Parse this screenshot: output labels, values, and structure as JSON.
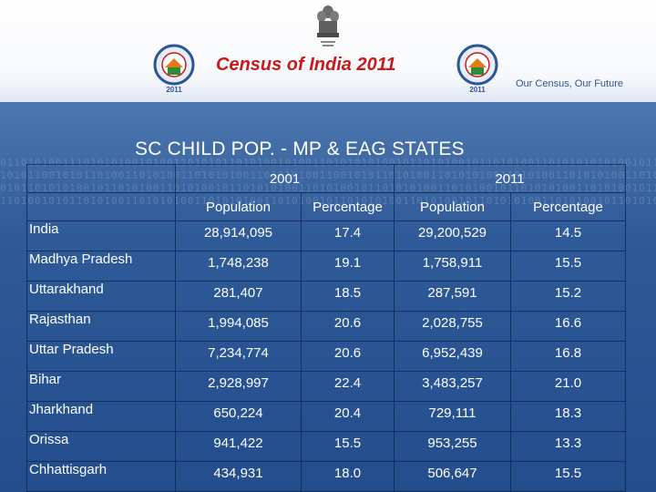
{
  "header": {
    "title": "Census of India 2011",
    "tagline": "Our Census,  Our Future",
    "logo_year": "2011"
  },
  "slide": {
    "title": "SC CHILD POP. - MP & EAG STATES"
  },
  "table": {
    "year_headers": [
      "2001",
      "2011"
    ],
    "sub_headers": [
      "Population",
      "Percentage",
      "Population",
      "Percentage"
    ],
    "rows": [
      {
        "state": "India",
        "pop_2001": "28,914,095",
        "pct_2001": "17.4",
        "pop_2011": "29,200,529",
        "pct_2011": "14.5"
      },
      {
        "state": "Madhya Pradesh",
        "pop_2001": "1,748,238",
        "pct_2001": "19.1",
        "pop_2011": "1,758,911",
        "pct_2011": "15.5"
      },
      {
        "state": "Uttarakhand",
        "pop_2001": "281,407",
        "pct_2001": "18.5",
        "pop_2011": "287,591",
        "pct_2011": "15.2"
      },
      {
        "state": "Rajasthan",
        "pop_2001": "1,994,085",
        "pct_2001": "20.6",
        "pop_2011": "2,028,755",
        "pct_2011": "16.6"
      },
      {
        "state": "Uttar Pradesh",
        "pop_2001": "7,234,774",
        "pct_2001": "20.6",
        "pop_2011": "6,952,439",
        "pct_2011": "16.8"
      },
      {
        "state": "Bihar",
        "pop_2001": "2,928,997",
        "pct_2001": "22.4",
        "pop_2011": "3,483,257",
        "pct_2011": "21.0"
      },
      {
        "state": "Jharkhand",
        "pop_2001": "650,224",
        "pct_2001": "20.4",
        "pop_2011": "729,111",
        "pct_2011": "18.3"
      },
      {
        "state": "Orissa",
        "pop_2001": "941,422",
        "pct_2001": "15.5",
        "pop_2011": "953,255",
        "pct_2011": "13.3"
      },
      {
        "state": "Chhattisgarh",
        "pop_2001": "434,931",
        "pct_2001": "18.0",
        "pop_2011": "506,647",
        "pct_2011": "15.5"
      }
    ]
  },
  "colors": {
    "title_red": "#c81a1a",
    "tagline_blue": "#2f5597",
    "background_blue": "#2a5190",
    "text_white": "#ffffff"
  },
  "icons": [
    "state-emblem-icon",
    "census-logo-icon"
  ]
}
